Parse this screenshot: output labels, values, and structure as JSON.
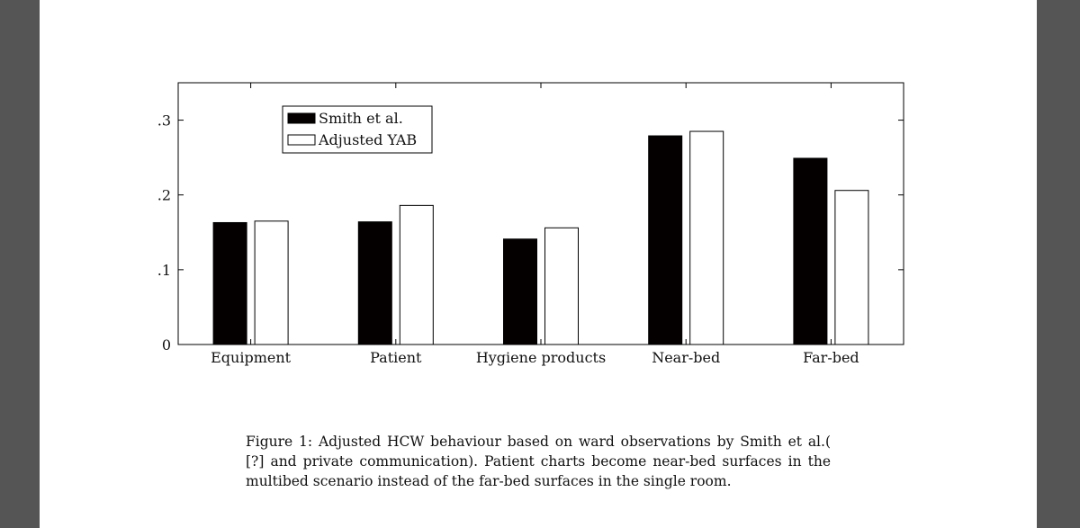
{
  "chart_data": {
    "type": "bar",
    "categories": [
      "Equipment",
      "Patient",
      "Hygiene products",
      "Near-bed",
      "Far-bed"
    ],
    "series": [
      {
        "name": "Smith et al.",
        "values": [
          0.163,
          0.164,
          0.141,
          0.279,
          0.249
        ],
        "color": "#050000",
        "fill": "solid"
      },
      {
        "name": "Adjusted YAB",
        "values": [
          0.165,
          0.186,
          0.156,
          0.285,
          0.206
        ],
        "color": "#ffffff",
        "fill": "outline"
      }
    ],
    "yticks": [
      {
        "value": 0,
        "label": "0"
      },
      {
        "value": 0.1,
        "label": ".1"
      },
      {
        "value": 0.2,
        "label": ".2"
      },
      {
        "value": 0.3,
        "label": ".3"
      }
    ],
    "ylim": [
      0,
      0.35
    ],
    "legend_position": "top-left",
    "grid": false
  },
  "caption": "Figure 1: Adjusted HCW behaviour based on ward observations by Smith et al.( [?] and private communication). Patient charts become near-bed surfaces in the multibed scenario instead of the far-bed surfaces in the single room."
}
